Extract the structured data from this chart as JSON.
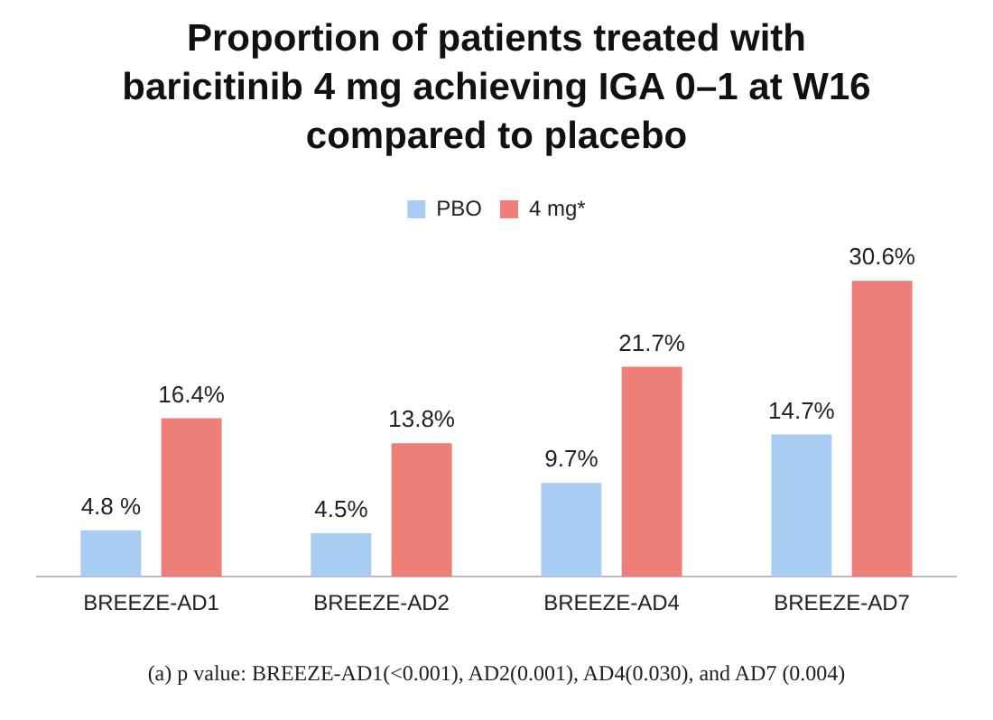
{
  "chart_data": {
    "type": "bar",
    "title": "Proportion of patients treated with baricitinib 4 mg achieving IGA 0–1 at W16 compared to placebo",
    "categories": [
      "BREEZE-AD1",
      "BREEZE-AD2",
      "BREEZE-AD4",
      "BREEZE-AD7"
    ],
    "series": [
      {
        "name": "PBO",
        "color": "#a9cdf2",
        "values": [
          4.8,
          4.5,
          9.7,
          14.7
        ],
        "value_labels": [
          "4.8 %",
          "4.5%",
          "9.7%",
          "14.7%"
        ]
      },
      {
        "name": "4 mg*",
        "color": "#ee7f78",
        "values": [
          16.4,
          13.8,
          21.7,
          30.6
        ],
        "value_labels": [
          "16.4%",
          "13.8%",
          "21.7%",
          "30.6%"
        ]
      }
    ],
    "legend": "top",
    "grid": false,
    "tick_labels": "x",
    "annotations": [
      "(a) p value: BREEZE-AD1(<0.001), AD2(0.001), AD4(0.030), and AD7 (0.004)"
    ]
  }
}
